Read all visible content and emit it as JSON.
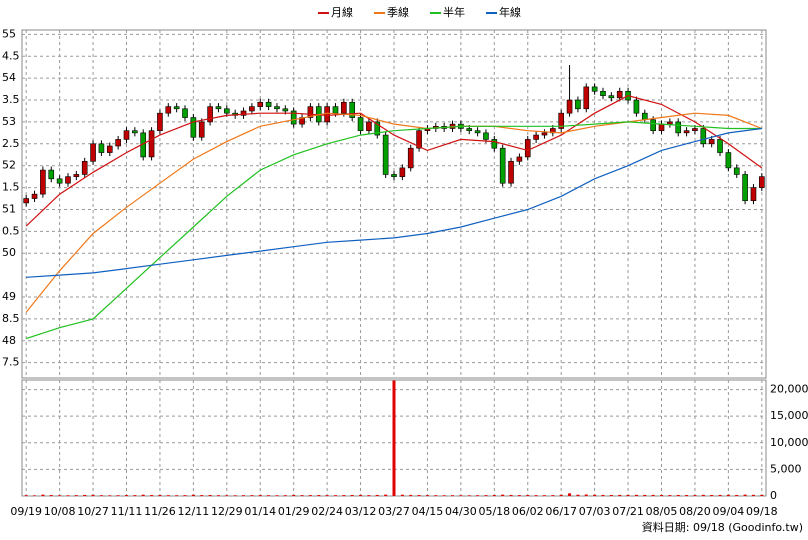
{
  "chart_data": {
    "type": "candlestick",
    "legend_position": "top",
    "footer": "資料日期: 09/18 (Goodinfo.tw)",
    "grid": true,
    "up_color": "#c00000",
    "down_color": "#00a000",
    "categories": [
      "09/19",
      null,
      null,
      null,
      "10/08",
      null,
      null,
      null,
      "10/27",
      null,
      null,
      null,
      "11/11",
      null,
      null,
      null,
      "11/26",
      null,
      null,
      null,
      "12/11",
      null,
      null,
      null,
      "12/29",
      null,
      null,
      null,
      "01/14",
      null,
      null,
      null,
      "01/29",
      null,
      null,
      null,
      "02/24",
      null,
      null,
      null,
      "03/12",
      null,
      null,
      null,
      "03/27",
      null,
      null,
      null,
      "04/15",
      null,
      null,
      null,
      "04/30",
      null,
      null,
      null,
      "05/18",
      null,
      null,
      null,
      "06/02",
      null,
      null,
      null,
      "06/17",
      null,
      null,
      null,
      "07/03",
      null,
      null,
      null,
      "07/21",
      null,
      null,
      null,
      "08/05",
      null,
      null,
      null,
      "08/20",
      null,
      null,
      null,
      "09/04",
      null,
      null,
      null,
      "09/18"
    ],
    "open": [
      51.15,
      51.25,
      51.35,
      51.9,
      51.7,
      51.6,
      51.75,
      51.8,
      52.1,
      52.5,
      52.3,
      52.45,
      52.6,
      52.8,
      52.75,
      52.2,
      52.8,
      53.2,
      53.35,
      53.3,
      53.1,
      52.65,
      53.0,
      53.35,
      53.3,
      53.2,
      53.15,
      53.25,
      53.35,
      53.45,
      53.35,
      53.3,
      53.25,
      52.95,
      53.1,
      53.35,
      53.0,
      53.35,
      53.2,
      53.45,
      53.1,
      52.8,
      53.0,
      52.7,
      51.8,
      51.75,
      51.95,
      52.4,
      52.8,
      52.85,
      52.9,
      52.85,
      52.95,
      52.85,
      52.8,
      52.75,
      52.6,
      52.4,
      51.6,
      52.1,
      52.2,
      52.6,
      52.7,
      52.75,
      52.85,
      53.2,
      53.5,
      53.3,
      53.8,
      53.7,
      53.6,
      53.55,
      53.7,
      53.5,
      53.2,
      53.05,
      52.8,
      52.95,
      53.0,
      52.75,
      52.8,
      52.85,
      52.5,
      52.6,
      52.3,
      51.95,
      51.8,
      51.2,
      51.5
    ],
    "high": [
      51.33,
      51.43,
      51.98,
      51.98,
      51.78,
      51.83,
      51.88,
      52.18,
      52.58,
      52.58,
      52.53,
      52.68,
      52.88,
      52.88,
      52.83,
      52.88,
      53.28,
      53.43,
      53.43,
      53.38,
      53.18,
      53.08,
      53.43,
      53.43,
      53.38,
      53.28,
      53.33,
      53.43,
      53.53,
      53.53,
      53.43,
      53.38,
      53.33,
      53.18,
      53.43,
      53.43,
      53.43,
      53.43,
      53.53,
      53.53,
      53.18,
      53.08,
      53.08,
      52.78,
      51.88,
      52.03,
      52.48,
      52.88,
      52.93,
      52.98,
      52.98,
      53.03,
      53.03,
      52.93,
      52.88,
      52.83,
      52.68,
      52.48,
      52.18,
      52.28,
      52.68,
      52.78,
      52.83,
      52.93,
      53.28,
      54.3,
      53.58,
      53.88,
      53.88,
      53.78,
      53.68,
      53.78,
      53.78,
      53.58,
      53.28,
      53.13,
      53.03,
      53.08,
      53.08,
      52.88,
      52.93,
      52.93,
      52.68,
      52.68,
      52.38,
      52.03,
      51.88,
      51.58,
      51.83
    ],
    "low": [
      51.07,
      51.17,
      51.27,
      51.62,
      51.52,
      51.52,
      51.67,
      51.72,
      52.02,
      52.22,
      52.22,
      52.37,
      52.52,
      52.67,
      52.12,
      52.12,
      52.72,
      53.12,
      53.22,
      53.02,
      52.57,
      52.57,
      52.92,
      53.22,
      53.12,
      53.07,
      53.07,
      53.17,
      53.27,
      53.27,
      53.22,
      53.17,
      52.87,
      52.87,
      53.02,
      52.92,
      52.92,
      53.12,
      53.12,
      53.02,
      52.72,
      52.72,
      52.62,
      51.72,
      51.67,
      51.67,
      51.87,
      52.32,
      52.72,
      52.77,
      52.77,
      52.77,
      52.77,
      52.72,
      52.67,
      52.52,
      52.32,
      51.52,
      51.52,
      52.02,
      52.12,
      52.52,
      52.62,
      52.67,
      52.77,
      53.12,
      53.22,
      53.22,
      53.62,
      53.52,
      53.47,
      53.47,
      53.42,
      53.12,
      52.97,
      52.72,
      52.72,
      52.87,
      52.67,
      52.67,
      52.72,
      52.42,
      52.42,
      52.22,
      51.87,
      51.72,
      51.12,
      51.12,
      51.42
    ],
    "close": [
      51.25,
      51.35,
      51.9,
      51.7,
      51.6,
      51.75,
      51.8,
      52.1,
      52.5,
      52.3,
      52.45,
      52.6,
      52.8,
      52.75,
      52.2,
      52.8,
      53.2,
      53.35,
      53.3,
      53.1,
      52.65,
      53.0,
      53.35,
      53.3,
      53.2,
      53.15,
      53.25,
      53.35,
      53.45,
      53.35,
      53.3,
      53.25,
      52.95,
      53.1,
      53.35,
      53.0,
      53.35,
      53.2,
      53.45,
      53.1,
      52.8,
      53.0,
      52.7,
      51.8,
      51.75,
      51.95,
      52.4,
      52.8,
      52.85,
      52.9,
      52.85,
      52.95,
      52.85,
      52.8,
      52.75,
      52.6,
      52.4,
      51.6,
      52.1,
      52.2,
      52.6,
      52.7,
      52.75,
      52.85,
      53.2,
      53.5,
      53.3,
      53.8,
      53.7,
      53.6,
      53.55,
      53.7,
      53.5,
      53.2,
      53.05,
      52.8,
      52.95,
      53.0,
      52.75,
      52.8,
      52.85,
      52.5,
      52.6,
      52.3,
      51.95,
      51.8,
      51.2,
      51.5,
      51.75
    ],
    "ylim": [
      47.15,
      55.1
    ],
    "yticks": [
      55,
      {
        "value": 54.5,
        "label": "4.5"
      },
      54,
      {
        "value": 53.5,
        "label": "3.5"
      },
      53,
      {
        "value": 52.5,
        "label": "2.5"
      },
      52,
      {
        "value": 51.5,
        "label": "1.5"
      },
      51,
      {
        "value": 50.5,
        "label": "0.5"
      },
      50,
      49,
      {
        "value": 48.5,
        "label": "8.5"
      },
      48,
      {
        "value": 47.5,
        "label": "7.5"
      }
    ],
    "series": [
      {
        "name": "月線",
        "color": "#d01010",
        "x": [
          "09/19",
          "10/08",
          "10/27",
          "11/11",
          "11/26",
          "12/11",
          "12/29",
          "01/14",
          "01/29",
          "02/24",
          "03/12",
          "03/27",
          "04/15",
          "04/30",
          "05/18",
          "06/02",
          "06/17",
          "07/03",
          "07/21",
          "08/05",
          "08/20",
          "09/04",
          "09/18"
        ],
        "values": [
          50.62,
          51.35,
          51.85,
          52.3,
          52.7,
          53.0,
          53.15,
          53.2,
          53.2,
          53.15,
          53.2,
          52.7,
          52.35,
          52.6,
          52.55,
          52.35,
          52.7,
          53.2,
          53.6,
          53.4,
          53.0,
          52.5,
          51.95
        ]
      },
      {
        "name": "季線",
        "color": "#f07818",
        "x": [
          "09/19",
          "10/08",
          "10/27",
          "11/11",
          "11/26",
          "12/11",
          "12/29",
          "01/14",
          "01/29",
          "02/24",
          "03/12",
          "03/27",
          "04/15",
          "04/30",
          "05/18",
          "06/02",
          "06/17",
          "07/03",
          "07/21",
          "08/05",
          "08/20",
          "09/04",
          "09/18"
        ],
        "values": [
          48.65,
          49.6,
          50.45,
          51.05,
          51.6,
          52.15,
          52.55,
          52.9,
          53.05,
          53.2,
          53.15,
          52.95,
          52.85,
          52.9,
          52.9,
          52.8,
          52.75,
          52.9,
          53.0,
          53.1,
          53.2,
          53.15,
          52.85
        ]
      },
      {
        "name": "半年",
        "color": "#20c020",
        "x": [
          "09/19",
          "10/08",
          "10/27",
          "11/11",
          "11/26",
          "12/11",
          "12/29",
          "01/14",
          "01/29",
          "02/24",
          "03/12",
          "03/27",
          "04/15",
          "04/30",
          "05/18",
          "06/02",
          "06/17",
          "07/03",
          "07/21",
          "08/05",
          "08/20",
          "09/04",
          "09/18"
        ],
        "values": [
          48.05,
          48.3,
          48.5,
          49.2,
          49.9,
          50.6,
          51.3,
          51.9,
          52.25,
          52.5,
          52.7,
          52.8,
          52.85,
          52.9,
          52.9,
          52.9,
          52.9,
          52.95,
          53.0,
          52.95,
          52.9,
          52.85,
          52.85
        ]
      },
      {
        "name": "年線",
        "color": "#1060c0",
        "x": [
          "09/19",
          "10/08",
          "10/27",
          "11/11",
          "11/26",
          "12/11",
          "12/29",
          "01/14",
          "01/29",
          "02/24",
          "03/12",
          "03/27",
          "04/15",
          "04/30",
          "05/18",
          "06/02",
          "06/17",
          "07/03",
          "07/21",
          "08/05",
          "08/20",
          "09/04",
          "09/18"
        ],
        "values": [
          49.45,
          49.5,
          49.55,
          49.65,
          49.75,
          49.85,
          49.95,
          50.05,
          50.15,
          50.25,
          50.3,
          50.35,
          50.45,
          50.6,
          50.8,
          51.0,
          51.3,
          51.7,
          52.0,
          52.35,
          52.55,
          52.75,
          52.85
        ]
      }
    ],
    "volume": {
      "color": "#e00000",
      "values": [
        150,
        120,
        260,
        180,
        140,
        130,
        160,
        200,
        220,
        150,
        130,
        140,
        170,
        160,
        240,
        180,
        200,
        150,
        140,
        160,
        230,
        170,
        190,
        150,
        140,
        130,
        150,
        160,
        170,
        150,
        140,
        150,
        200,
        160,
        170,
        180,
        160,
        150,
        170,
        190,
        210,
        160,
        200,
        260,
        21700,
        240,
        200,
        180,
        160,
        150,
        140,
        150,
        140,
        130,
        150,
        160,
        180,
        260,
        200,
        170,
        180,
        160,
        150,
        160,
        220,
        500,
        240,
        280,
        230,
        200,
        190,
        210,
        200,
        220,
        200,
        210,
        190,
        170,
        200,
        180,
        170,
        220,
        190,
        210,
        230,
        200,
        260,
        220,
        210
      ],
      "ylim": [
        0,
        21800
      ],
      "yticks": [
        {
          "value": 20000,
          "label": "20,000"
        },
        {
          "value": 15000,
          "label": "15,000"
        },
        {
          "value": 10000,
          "label": "10,000"
        },
        {
          "value": 5000,
          "label": "5,000"
        },
        0
      ]
    }
  }
}
